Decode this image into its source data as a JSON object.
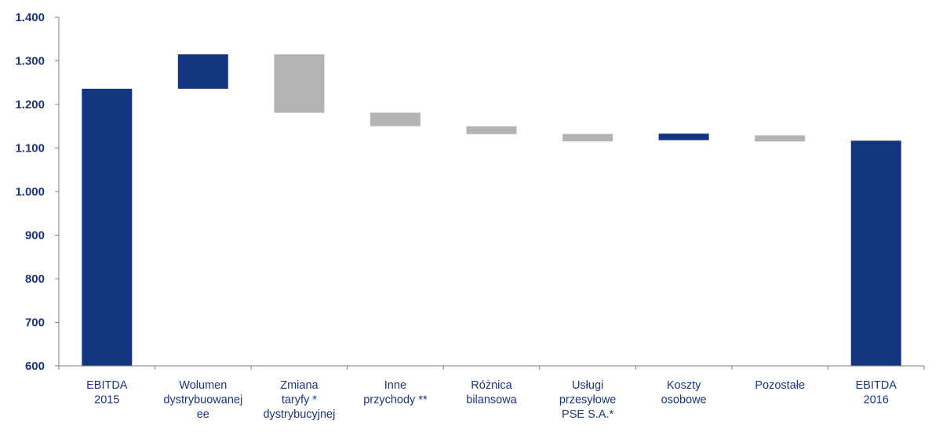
{
  "colors": {
    "increase": "#14357f",
    "decrease": "#b3b3b3",
    "total": "#14357f",
    "axis": "#7f7f7f",
    "text": "#1a3480"
  },
  "chart_data": {
    "type": "bar",
    "subtype": "waterfall",
    "title": "",
    "xlabel": "",
    "ylabel": "",
    "ylim": [
      600,
      1400
    ],
    "yticks": [
      600,
      700,
      800,
      900,
      1000,
      1100,
      1200,
      1300,
      1400
    ],
    "ytick_labels": [
      "600",
      "700",
      "800",
      "900",
      "1.000",
      "1.100",
      "1.200",
      "1.300",
      "1.400"
    ],
    "grid": false,
    "legend": "none",
    "categories": [
      [
        "EBITDA",
        "2015"
      ],
      [
        "Wolumen",
        "dystrybuowanej",
        "ee"
      ],
      [
        "Zmiana",
        "taryfy *",
        "dystrybucyjnej"
      ],
      [
        "Inne",
        "przychody **"
      ],
      [
        "Różnica",
        "bilansowa"
      ],
      [
        "Usługi",
        "przesyłowe",
        "PSE S.A.*"
      ],
      [
        "Koszty",
        "osobowe"
      ],
      [
        "Pozostałe"
      ],
      [
        "EBITDA",
        "2016"
      ]
    ],
    "bars": [
      {
        "kind": "total",
        "start": 600,
        "end": 1236
      },
      {
        "kind": "increase",
        "start": 1236,
        "end": 1315
      },
      {
        "kind": "decrease",
        "start": 1315,
        "end": 1181
      },
      {
        "kind": "decrease",
        "start": 1181,
        "end": 1150
      },
      {
        "kind": "decrease",
        "start": 1150,
        "end": 1132
      },
      {
        "kind": "decrease",
        "start": 1132,
        "end": 1115
      },
      {
        "kind": "increase",
        "start": 1118,
        "end": 1133
      },
      {
        "kind": "decrease",
        "start": 1129,
        "end": 1115
      },
      {
        "kind": "total",
        "start": 600,
        "end": 1117
      }
    ]
  }
}
